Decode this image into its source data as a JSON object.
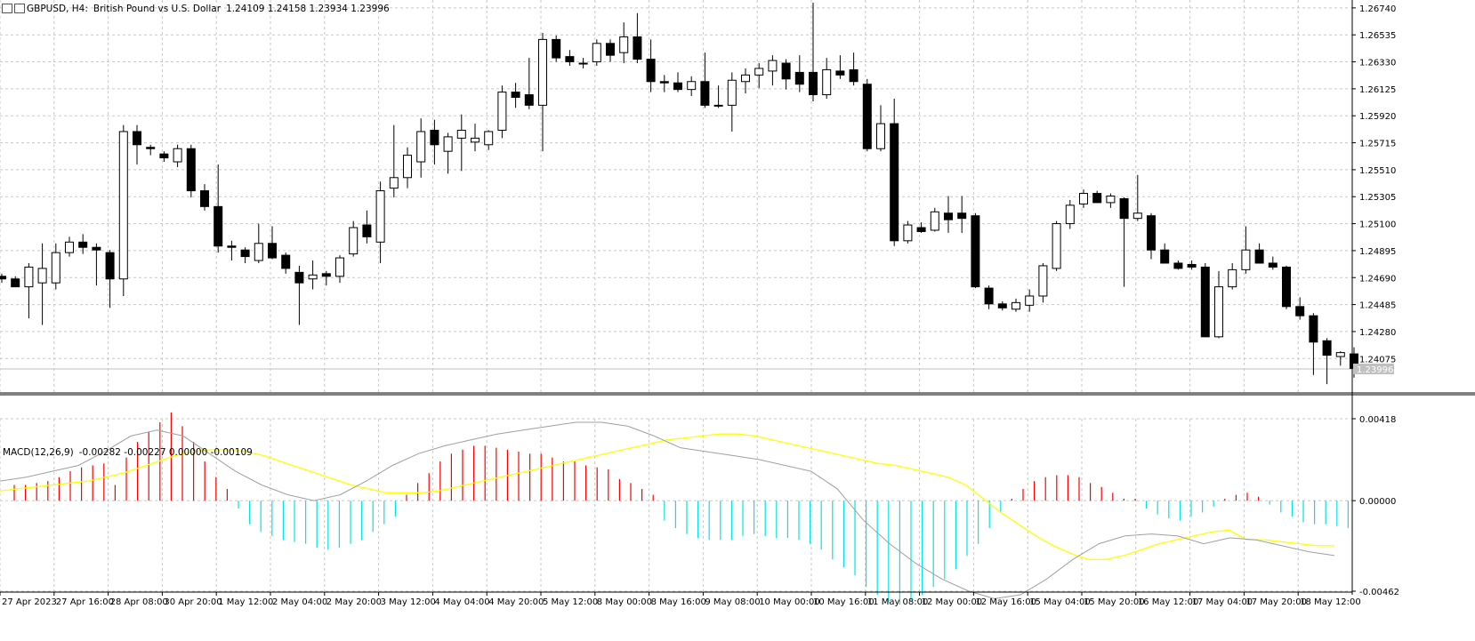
{
  "header": {
    "symbol": "GBPUSD, H4:",
    "description": "British Pound vs U.S. Dollar",
    "ohlc": "1.24109 1.24158 1.23934 1.23996"
  },
  "macd_header": {
    "name": "MACD(12,26,9)",
    "values": "-0.00282 -0.00227 0.00000 -0.00109"
  },
  "colors": {
    "up_candle_fill": "#ffffff",
    "down_candle_fill": "#000000",
    "grid": "#c8c8c8",
    "hist_positive": "#ff0000",
    "hist_negative": "#00e5e5",
    "signal_line": "#ffff00",
    "macd_line": "#a0a0a0",
    "bid_line": "#c0c0c0"
  },
  "price_axis": {
    "labels": [
      "1.26740",
      "1.26535",
      "1.26330",
      "1.26125",
      "1.25920",
      "1.25715",
      "1.25510",
      "1.25305",
      "1.25100",
      "1.24895",
      "1.24690",
      "1.24485",
      "1.24280",
      "1.24075"
    ],
    "current": "1.23996"
  },
  "macd_axis": {
    "labels": [
      "0.00418",
      "0.00000",
      "-0.00462"
    ]
  },
  "time_axis": {
    "labels": [
      "27 Apr 2023",
      "27 Apr 16:00",
      "28 Apr 08:00",
      "30 Apr 20:00",
      "1 May 12:00",
      "2 May 04:00",
      "2 May 20:00",
      "3 May 12:00",
      "4 May 04:00",
      "4 May 20:00",
      "5 May 12:00",
      "8 May 00:00",
      "8 May 16:00",
      "9 May 08:00",
      "10 May 00:00",
      "10 May 16:00",
      "11 May 08:00",
      "12 May 00:00",
      "12 May 16:00",
      "15 May 04:00",
      "15 May 20:00",
      "16 May 12:00",
      "17 May 04:00",
      "17 May 20:00",
      "18 May 12:00"
    ]
  },
  "chart_data": [
    {
      "type": "candlestick",
      "title": "GBPUSD, H4: British Pound vs U.S. Dollar",
      "ylim": [
        1.2382,
        1.268
      ],
      "grid": true,
      "candles": [
        {
          "o": 1.247,
          "h": 1.2472,
          "l": 1.2465,
          "c": 1.2468
        },
        {
          "o": 1.2468,
          "h": 1.247,
          "l": 1.2462,
          "c": 1.2462
        },
        {
          "o": 1.2462,
          "h": 1.248,
          "l": 1.2438,
          "c": 1.2477
        },
        {
          "o": 1.2465,
          "h": 1.2495,
          "l": 1.2433,
          "c": 1.2476
        },
        {
          "o": 1.2465,
          "h": 1.2495,
          "l": 1.246,
          "c": 1.2488
        },
        {
          "o": 1.2488,
          "h": 1.25,
          "l": 1.2485,
          "c": 1.2496
        },
        {
          "o": 1.2496,
          "h": 1.2502,
          "l": 1.2487,
          "c": 1.2492
        },
        {
          "o": 1.2492,
          "h": 1.2495,
          "l": 1.2463,
          "c": 1.249
        },
        {
          "o": 1.2488,
          "h": 1.249,
          "l": 1.2446,
          "c": 1.2468
        },
        {
          "o": 1.2468,
          "h": 1.2585,
          "l": 1.2455,
          "c": 1.258
        },
        {
          "o": 1.258,
          "h": 1.2585,
          "l": 1.2555,
          "c": 1.257
        },
        {
          "o": 1.2568,
          "h": 1.257,
          "l": 1.2562,
          "c": 1.2567
        },
        {
          "o": 1.2563,
          "h": 1.2565,
          "l": 1.2557,
          "c": 1.256
        },
        {
          "o": 1.2557,
          "h": 1.257,
          "l": 1.2553,
          "c": 1.2567
        },
        {
          "o": 1.2567,
          "h": 1.257,
          "l": 1.253,
          "c": 1.2535
        },
        {
          "o": 1.2535,
          "h": 1.254,
          "l": 1.252,
          "c": 1.2523
        },
        {
          "o": 1.2523,
          "h": 1.2555,
          "l": 1.2488,
          "c": 1.2493
        },
        {
          "o": 1.2493,
          "h": 1.2497,
          "l": 1.2482,
          "c": 1.2492
        },
        {
          "o": 1.249,
          "h": 1.2492,
          "l": 1.248,
          "c": 1.2485
        },
        {
          "o": 1.2482,
          "h": 1.251,
          "l": 1.248,
          "c": 1.2495
        },
        {
          "o": 1.2495,
          "h": 1.2508,
          "l": 1.2483,
          "c": 1.2484
        },
        {
          "o": 1.2486,
          "h": 1.2488,
          "l": 1.2472,
          "c": 1.2476
        },
        {
          "o": 1.2473,
          "h": 1.2478,
          "l": 1.2433,
          "c": 1.2465
        },
        {
          "o": 1.2468,
          "h": 1.2482,
          "l": 1.246,
          "c": 1.2471
        },
        {
          "o": 1.2472,
          "h": 1.2474,
          "l": 1.2463,
          "c": 1.247
        },
        {
          "o": 1.247,
          "h": 1.2486,
          "l": 1.2465,
          "c": 1.2484
        },
        {
          "o": 1.2487,
          "h": 1.2512,
          "l": 1.2485,
          "c": 1.2507
        },
        {
          "o": 1.2509,
          "h": 1.252,
          "l": 1.2495,
          "c": 1.25
        },
        {
          "o": 1.2496,
          "h": 1.2542,
          "l": 1.248,
          "c": 1.2535
        },
        {
          "o": 1.2537,
          "h": 1.2585,
          "l": 1.253,
          "c": 1.2545
        },
        {
          "o": 1.2545,
          "h": 1.2568,
          "l": 1.2537,
          "c": 1.2562
        },
        {
          "o": 1.2557,
          "h": 1.259,
          "l": 1.2545,
          "c": 1.258
        },
        {
          "o": 1.2581,
          "h": 1.2589,
          "l": 1.2555,
          "c": 1.257
        },
        {
          "o": 1.2565,
          "h": 1.2579,
          "l": 1.2548,
          "c": 1.2576
        },
        {
          "o": 1.2575,
          "h": 1.2593,
          "l": 1.255,
          "c": 1.2581
        },
        {
          "o": 1.2572,
          "h": 1.2586,
          "l": 1.2565,
          "c": 1.2575
        },
        {
          "o": 1.257,
          "h": 1.2581,
          "l": 1.2566,
          "c": 1.258
        },
        {
          "o": 1.2581,
          "h": 1.2615,
          "l": 1.2575,
          "c": 1.261
        },
        {
          "o": 1.261,
          "h": 1.2617,
          "l": 1.2598,
          "c": 1.2606
        },
        {
          "o": 1.2608,
          "h": 1.2636,
          "l": 1.2597,
          "c": 1.26
        },
        {
          "o": 1.26,
          "h": 1.2655,
          "l": 1.2565,
          "c": 1.265
        },
        {
          "o": 1.265,
          "h": 1.2653,
          "l": 1.2633,
          "c": 1.2636
        },
        {
          "o": 1.2637,
          "h": 1.2642,
          "l": 1.263,
          "c": 1.2633
        },
        {
          "o": 1.2632,
          "h": 1.2636,
          "l": 1.2628,
          "c": 1.2632
        },
        {
          "o": 1.2633,
          "h": 1.265,
          "l": 1.263,
          "c": 1.2647
        },
        {
          "o": 1.2647,
          "h": 1.265,
          "l": 1.2633,
          "c": 1.2638
        },
        {
          "o": 1.264,
          "h": 1.2663,
          "l": 1.2632,
          "c": 1.2652
        },
        {
          "o": 1.2652,
          "h": 1.267,
          "l": 1.2632,
          "c": 1.2635
        },
        {
          "o": 1.2635,
          "h": 1.265,
          "l": 1.261,
          "c": 1.2618
        },
        {
          "o": 1.2618,
          "h": 1.2623,
          "l": 1.261,
          "c": 1.2617
        },
        {
          "o": 1.2617,
          "h": 1.2625,
          "l": 1.261,
          "c": 1.2612
        },
        {
          "o": 1.2612,
          "h": 1.2622,
          "l": 1.2607,
          "c": 1.2618
        },
        {
          "o": 1.2618,
          "h": 1.264,
          "l": 1.2598,
          "c": 1.26
        },
        {
          "o": 1.26,
          "h": 1.2615,
          "l": 1.2598,
          "c": 1.26
        },
        {
          "o": 1.26,
          "h": 1.2625,
          "l": 1.258,
          "c": 1.2619
        },
        {
          "o": 1.2618,
          "h": 1.2628,
          "l": 1.2609,
          "c": 1.2623
        },
        {
          "o": 1.2623,
          "h": 1.2632,
          "l": 1.2613,
          "c": 1.2628
        },
        {
          "o": 1.2626,
          "h": 1.2638,
          "l": 1.2615,
          "c": 1.2634
        },
        {
          "o": 1.2632,
          "h": 1.2635,
          "l": 1.2612,
          "c": 1.262
        },
        {
          "o": 1.2625,
          "h": 1.2638,
          "l": 1.261,
          "c": 1.2616
        },
        {
          "o": 1.2625,
          "h": 1.2678,
          "l": 1.2603,
          "c": 1.2608
        },
        {
          "o": 1.2608,
          "h": 1.2636,
          "l": 1.2605,
          "c": 1.2627
        },
        {
          "o": 1.2626,
          "h": 1.2638,
          "l": 1.262,
          "c": 1.2623
        },
        {
          "o": 1.2627,
          "h": 1.264,
          "l": 1.2615,
          "c": 1.2618
        },
        {
          "o": 1.2616,
          "h": 1.262,
          "l": 1.2565,
          "c": 1.2567
        },
        {
          "o": 1.2567,
          "h": 1.26,
          "l": 1.2565,
          "c": 1.2586
        },
        {
          "o": 1.2586,
          "h": 1.2605,
          "l": 1.2493,
          "c": 1.2497
        },
        {
          "o": 1.2497,
          "h": 1.2512,
          "l": 1.2495,
          "c": 1.2509
        },
        {
          "o": 1.2507,
          "h": 1.2511,
          "l": 1.2503,
          "c": 1.2504
        },
        {
          "o": 1.2505,
          "h": 1.2522,
          "l": 1.2504,
          "c": 1.2519
        },
        {
          "o": 1.2518,
          "h": 1.2531,
          "l": 1.2503,
          "c": 1.2513
        },
        {
          "o": 1.2518,
          "h": 1.2531,
          "l": 1.2503,
          "c": 1.2514
        },
        {
          "o": 1.2516,
          "h": 1.2518,
          "l": 1.2461,
          "c": 1.2462
        },
        {
          "o": 1.2461,
          "h": 1.2463,
          "l": 1.2445,
          "c": 1.2449
        },
        {
          "o": 1.2449,
          "h": 1.2451,
          "l": 1.2444,
          "c": 1.2446
        },
        {
          "o": 1.2445,
          "h": 1.2453,
          "l": 1.2443,
          "c": 1.245
        },
        {
          "o": 1.2448,
          "h": 1.246,
          "l": 1.2443,
          "c": 1.2455
        },
        {
          "o": 1.2455,
          "h": 1.248,
          "l": 1.245,
          "c": 1.2478
        },
        {
          "o": 1.2476,
          "h": 1.2512,
          "l": 1.2474,
          "c": 1.251
        },
        {
          "o": 1.251,
          "h": 1.2528,
          "l": 1.2506,
          "c": 1.2524
        },
        {
          "o": 1.2525,
          "h": 1.2536,
          "l": 1.2522,
          "c": 1.2533
        },
        {
          "o": 1.2533,
          "h": 1.2535,
          "l": 1.2526,
          "c": 1.2526
        },
        {
          "o": 1.2526,
          "h": 1.2533,
          "l": 1.2522,
          "c": 1.2531
        },
        {
          "o": 1.2529,
          "h": 1.253,
          "l": 1.2462,
          "c": 1.2514
        },
        {
          "o": 1.2514,
          "h": 1.2547,
          "l": 1.2512,
          "c": 1.2518
        },
        {
          "o": 1.2516,
          "h": 1.2518,
          "l": 1.2483,
          "c": 1.249
        },
        {
          "o": 1.249,
          "h": 1.2495,
          "l": 1.248,
          "c": 1.248
        },
        {
          "o": 1.248,
          "h": 1.2482,
          "l": 1.2475,
          "c": 1.2476
        },
        {
          "o": 1.2479,
          "h": 1.2482,
          "l": 1.2475,
          "c": 1.2477
        },
        {
          "o": 1.2477,
          "h": 1.248,
          "l": 1.2424,
          "c": 1.2424
        },
        {
          "o": 1.2424,
          "h": 1.2474,
          "l": 1.2423,
          "c": 1.2462
        },
        {
          "o": 1.2462,
          "h": 1.248,
          "l": 1.246,
          "c": 1.2475
        },
        {
          "o": 1.2475,
          "h": 1.2508,
          "l": 1.2472,
          "c": 1.249
        },
        {
          "o": 1.249,
          "h": 1.2495,
          "l": 1.248,
          "c": 1.248
        },
        {
          "o": 1.248,
          "h": 1.2485,
          "l": 1.2475,
          "c": 1.2477
        },
        {
          "o": 1.2477,
          "h": 1.2478,
          "l": 1.2445,
          "c": 1.2447
        },
        {
          "o": 1.2447,
          "h": 1.2454,
          "l": 1.2437,
          "c": 1.244
        },
        {
          "o": 1.244,
          "h": 1.2442,
          "l": 1.2395,
          "c": 1.242
        },
        {
          "o": 1.2421,
          "h": 1.2423,
          "l": 1.2388,
          "c": 1.241
        },
        {
          "o": 1.2409,
          "h": 1.2413,
          "l": 1.2402,
          "c": 1.2412
        },
        {
          "o": 1.2411,
          "h": 1.2416,
          "l": 1.2393,
          "c": 1.24
        }
      ]
    },
    {
      "type": "macd",
      "title": "MACD(12,26,9)",
      "ylim": [
        -0.00462,
        0.00418
      ],
      "histogram": [
        0.0008,
        0.0008,
        0.0009,
        0.001,
        0.0012,
        0.0015,
        0.0017,
        0.0018,
        0.0019,
        0.0008,
        0.0022,
        0.003,
        0.0035,
        0.004,
        0.0045,
        0.0038,
        0.003,
        0.002,
        0.0012,
        0.0006,
        -0.0004,
        -0.0012,
        -0.0016,
        -0.0018,
        -0.002,
        -0.0021,
        -0.0022,
        -0.0024,
        -0.0025,
        -0.0024,
        -0.0022,
        -0.002,
        -0.0016,
        -0.0012,
        -0.0008,
        0.0003,
        0.0009,
        0.0014,
        0.002,
        0.0024,
        0.0026,
        0.0028,
        0.0028,
        0.0027,
        0.0026,
        0.0025,
        0.0024,
        0.0024,
        0.0022,
        0.002,
        0.002,
        0.0018,
        0.0017,
        0.0016,
        0.0011,
        0.0009,
        0.0006,
        0.0003,
        -0.001,
        -0.0014,
        -0.0017,
        -0.0019,
        -0.002,
        -0.002,
        -0.002,
        -0.0018,
        -0.0017,
        -0.0018,
        -0.0019,
        -0.0019,
        -0.002,
        -0.0022,
        -0.0025,
        -0.003,
        -0.0034,
        -0.0038,
        -0.0044,
        -0.0048,
        -0.0052,
        -0.0053,
        -0.0051,
        -0.0048,
        -0.0044,
        -0.004,
        -0.0035,
        -0.0028,
        -0.0022,
        -0.0014,
        -0.0006,
        0.0001,
        0.0006,
        0.001,
        0.0012,
        0.0013,
        0.0013,
        0.0012,
        0.0009,
        0.0007,
        0.0004,
        0.0001,
        0.0001,
        -0.0004,
        -0.0007,
        -0.0009,
        -0.001,
        -0.0008,
        -0.0006,
        -0.0003,
        0.0001,
        0.0003,
        0.0004,
        0.0002,
        -0.0002,
        -0.0006,
        -0.0008,
        -0.0011,
        -0.0012,
        -0.0012,
        -0.0013,
        -0.0014
      ],
      "signal": [
        0.0005,
        0.0006,
        0.0007,
        0.0008,
        0.0009,
        0.001,
        0.0012,
        0.0014,
        0.0017,
        0.002,
        0.0023,
        0.0025,
        0.0026,
        0.0026,
        0.0025,
        0.0023,
        0.002,
        0.0017,
        0.0014,
        0.0011,
        0.0008,
        0.0006,
        0.0004,
        0.0004,
        0.0004,
        0.0005,
        0.0007,
        0.0009,
        0.0011,
        0.0013,
        0.0015,
        0.0017,
        0.0019,
        0.0021,
        0.0023,
        0.0025,
        0.0027,
        0.0029,
        0.0031,
        0.0032,
        0.0033,
        0.0034,
        0.0034,
        0.0033,
        0.0031,
        0.0029,
        0.0027,
        0.0025,
        0.0023,
        0.0021,
        0.0019,
        0.0018,
        0.0016,
        0.0014,
        0.0012,
        0.0008,
        0.0001,
        -0.0006,
        -0.0012,
        -0.0018,
        -0.0023,
        -0.0027,
        -0.003,
        -0.003,
        -0.0028,
        -0.0025,
        -0.0022,
        -0.002,
        -0.0018,
        -0.0016,
        -0.0015,
        -0.002,
        -0.002,
        -0.0021,
        -0.0022,
        -0.0023,
        -0.0023
      ],
      "macd": [
        0.001,
        0.0012,
        0.0015,
        0.0018,
        0.0025,
        0.0033,
        0.0036,
        0.0033,
        0.0024,
        0.0015,
        0.0008,
        0.0003,
        0.0,
        0.0003,
        0.001,
        0.0018,
        0.0024,
        0.0028,
        0.0031,
        0.0034,
        0.0036,
        0.0038,
        0.004,
        0.004,
        0.0038,
        0.0033,
        0.0027,
        0.0025,
        0.0023,
        0.0021,
        0.0018,
        0.0015,
        0.0006,
        -0.001,
        -0.0022,
        -0.0032,
        -0.004,
        -0.0046,
        -0.005,
        -0.0048,
        -0.004,
        -0.003,
        -0.0022,
        -0.0018,
        -0.0017,
        -0.0018,
        -0.0022,
        -0.0019,
        -0.002,
        -0.0023,
        -0.0026,
        -0.0028
      ]
    }
  ]
}
